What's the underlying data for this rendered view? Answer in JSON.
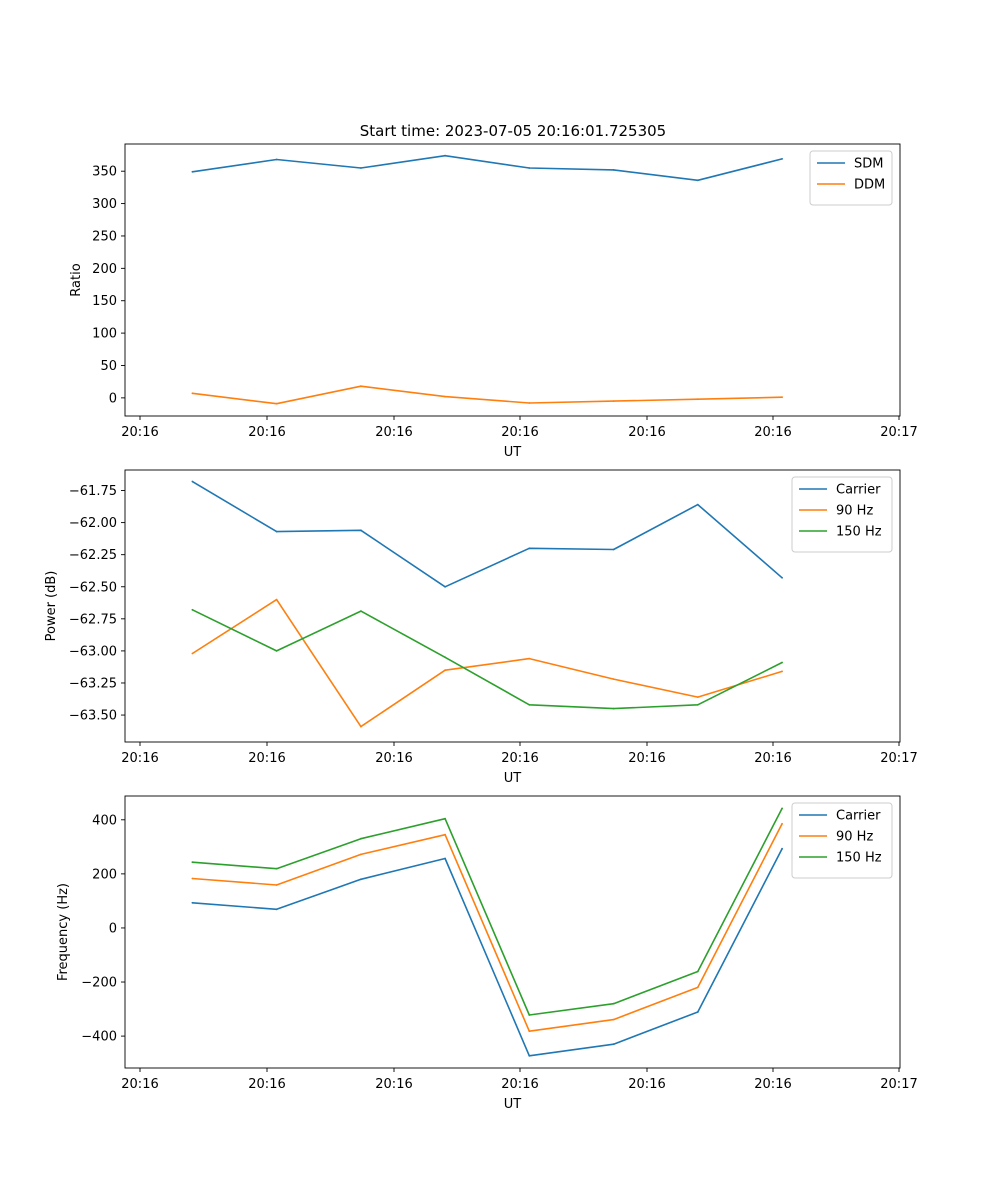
{
  "figure_title": "Start time: 2023-07-05 20:16:01.725305",
  "chart_data": [
    {
      "type": "line",
      "title": "Start time: 2023-07-05 20:16:01.725305",
      "xlabel": "UT",
      "ylabel": "Ratio",
      "x_tick_labels": [
        "20:16",
        "20:16",
        "20:16",
        "20:16",
        "20:16",
        "20:16",
        "20:17"
      ],
      "x": [
        1,
        2,
        3,
        4,
        5,
        6,
        7,
        8
      ],
      "xlim": [
        0.2,
        9.4
      ],
      "ylim": [
        -28,
        392
      ],
      "yticks": [
        0,
        50,
        100,
        150,
        200,
        250,
        300,
        350
      ],
      "ytick_labels": [
        "0",
        "50",
        "100",
        "150",
        "200",
        "250",
        "300",
        "350"
      ],
      "legend_position": "upper-right",
      "series": [
        {
          "name": "SDM",
          "color": "#1f77b4",
          "values": [
            349,
            368,
            355,
            374,
            355,
            352,
            336,
            369
          ]
        },
        {
          "name": "DDM",
          "color": "#ff7f0e",
          "values": [
            7,
            -9,
            18,
            2,
            -8,
            -5,
            -2,
            1
          ]
        }
      ]
    },
    {
      "type": "line",
      "title": "",
      "xlabel": "UT",
      "ylabel": "Power (dB)",
      "x_tick_labels": [
        "20:16",
        "20:16",
        "20:16",
        "20:16",
        "20:16",
        "20:16",
        "20:17"
      ],
      "x": [
        1,
        2,
        3,
        4,
        5,
        6,
        7,
        8
      ],
      "xlim": [
        0.2,
        9.4
      ],
      "ylim": [
        -63.71,
        -61.59
      ],
      "yticks": [
        -63.5,
        -63.25,
        -63.0,
        -62.75,
        -62.5,
        -62.25,
        -62.0,
        -61.75
      ],
      "ytick_labels": [
        "−63.50",
        "−63.25",
        "−63.00",
        "−62.75",
        "−62.50",
        "−62.25",
        "−62.00",
        "−61.75"
      ],
      "legend_position": "upper-right",
      "series": [
        {
          "name": "Carrier",
          "color": "#1f77b4",
          "values": [
            -61.68,
            -62.07,
            -62.06,
            -62.5,
            -62.2,
            -62.21,
            -61.86,
            -62.43
          ]
        },
        {
          "name": "90 Hz",
          "color": "#ff7f0e",
          "values": [
            -63.02,
            -62.6,
            -63.59,
            -63.15,
            -63.06,
            -63.22,
            -63.36,
            -63.16
          ]
        },
        {
          "name": "150 Hz",
          "color": "#2ca02c",
          "values": [
            -62.68,
            -63.0,
            -62.69,
            -63.05,
            -63.42,
            -63.45,
            -63.42,
            -63.09
          ]
        }
      ]
    },
    {
      "type": "line",
      "title": "",
      "xlabel": "UT",
      "ylabel": "Frequency (Hz)",
      "x_tick_labels": [
        "20:16",
        "20:16",
        "20:16",
        "20:16",
        "20:16",
        "20:16",
        "20:17"
      ],
      "x": [
        1,
        2,
        3,
        4,
        5,
        6,
        7,
        8
      ],
      "xlim": [
        0.2,
        9.4
      ],
      "ylim": [
        -518,
        488
      ],
      "yticks": [
        -400,
        -200,
        0,
        200,
        400
      ],
      "ytick_labels": [
        "−400",
        "−200",
        "0",
        "200",
        "400"
      ],
      "legend_position": "upper-right",
      "series": [
        {
          "name": "Carrier",
          "color": "#1f77b4",
          "values": [
            93,
            69,
            180,
            257,
            -473,
            -430,
            -311,
            293
          ]
        },
        {
          "name": "90 Hz",
          "color": "#ff7f0e",
          "values": [
            183,
            159,
            272,
            345,
            -382,
            -339,
            -220,
            385
          ]
        },
        {
          "name": "150 Hz",
          "color": "#2ca02c",
          "values": [
            243,
            219,
            330,
            404,
            -322,
            -280,
            -161,
            442
          ]
        }
      ]
    }
  ]
}
